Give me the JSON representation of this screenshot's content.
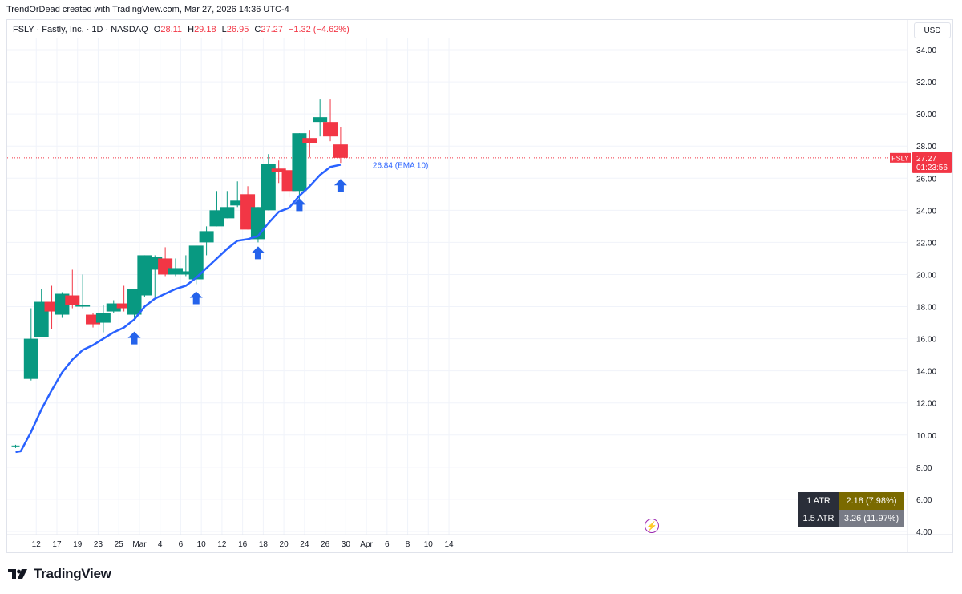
{
  "header": {
    "credit": "TrendOrDead created with TradingView.com, Mar 27, 2026 14:36 UTC-4",
    "symbol": "FSLY · Fastly, Inc. · 1D · NASDAQ",
    "open_label": "O",
    "open": "28.11",
    "high_label": "H",
    "high": "29.18",
    "low_label": "L",
    "low": "26.95",
    "close_label": "C",
    "close": "27.27",
    "change": "−1.32 (−4.62%)"
  },
  "currency": "USD",
  "brand": "TradingView",
  "colors": {
    "up": "#089981",
    "down": "#f23645",
    "ema": "#2962ff",
    "arrow": "#2563eb",
    "grid": "#f0f3fa",
    "axis_text": "#131722"
  },
  "atr_table": [
    {
      "label": "1 ATR",
      "value": "2.18 (7.98%)",
      "color": "#7a6a00"
    },
    {
      "label": "1.5 ATR",
      "value": "3.26 (11.97%)",
      "color": "#787b86"
    }
  ],
  "chart_data": {
    "type": "candlestick",
    "title": "FSLY · Fastly, Inc. · 1D · NASDAQ",
    "ylim": [
      4,
      35
    ],
    "y_ticks": [
      "4.00",
      "6.00",
      "8.00",
      "10.00",
      "12.00",
      "14.00",
      "16.00",
      "18.00",
      "20.00",
      "22.00",
      "24.00",
      "26.00",
      "28.00",
      "30.00",
      "32.00",
      "34.00"
    ],
    "x_ticks": [
      "12",
      "17",
      "19",
      "23",
      "25",
      "Mar",
      "4",
      "6",
      "10",
      "12",
      "16",
      "18",
      "20",
      "24",
      "26",
      "30",
      "Apr",
      "6",
      "8",
      "10",
      "14"
    ],
    "x_tick_slots": [
      2,
      4,
      6,
      8,
      10,
      12,
      14,
      16,
      18,
      20,
      22,
      24,
      26,
      28,
      30,
      32,
      34,
      36,
      38,
      40,
      42
    ],
    "candles": [
      {
        "slot": 0,
        "o": 9.3,
        "h": 9.4,
        "l": 9.2,
        "c": 9.35
      },
      {
        "slot": 1.5,
        "o": 13.5,
        "h": 17.9,
        "l": 13.4,
        "c": 16.0
      },
      {
        "slot": 2.5,
        "o": 16.1,
        "h": 19.1,
        "l": 16.1,
        "c": 18.3
      },
      {
        "slot": 3.5,
        "o": 18.3,
        "h": 19.3,
        "l": 16.6,
        "c": 17.7
      },
      {
        "slot": 4.5,
        "o": 17.5,
        "h": 18.9,
        "l": 17.3,
        "c": 18.8
      },
      {
        "slot": 5.5,
        "o": 18.7,
        "h": 20.3,
        "l": 17.9,
        "c": 18.1
      },
      {
        "slot": 6.5,
        "o": 18.0,
        "h": 20.0,
        "l": 17.9,
        "c": 18.1
      },
      {
        "slot": 7.5,
        "o": 17.5,
        "h": 17.6,
        "l": 16.7,
        "c": 16.9
      },
      {
        "slot": 8.5,
        "o": 17.0,
        "h": 18.1,
        "l": 16.4,
        "c": 17.6
      },
      {
        "slot": 9.5,
        "o": 17.7,
        "h": 18.4,
        "l": 17.6,
        "c": 18.2
      },
      {
        "slot": 10.5,
        "o": 18.2,
        "h": 19.3,
        "l": 17.7,
        "c": 17.9
      },
      {
        "slot": 11.5,
        "o": 17.5,
        "h": 19.1,
        "l": 17.3,
        "c": 19.1
      },
      {
        "slot": 12.5,
        "o": 18.7,
        "h": 21.2,
        "l": 18.6,
        "c": 21.2
      },
      {
        "slot": 13.5,
        "o": 20.3,
        "h": 21.2,
        "l": 18.6,
        "c": 21.1
      },
      {
        "slot": 14.5,
        "o": 21.0,
        "h": 21.7,
        "l": 19.9,
        "c": 20.0
      },
      {
        "slot": 15.5,
        "o": 20.0,
        "h": 21.0,
        "l": 19.9,
        "c": 20.4
      },
      {
        "slot": 16.5,
        "o": 20.0,
        "h": 21.2,
        "l": 19.9,
        "c": 20.2
      },
      {
        "slot": 17.5,
        "o": 19.7,
        "h": 21.8,
        "l": 19.4,
        "c": 21.8
      },
      {
        "slot": 18.5,
        "o": 22.0,
        "h": 23.0,
        "l": 21.2,
        "c": 22.7
      },
      {
        "slot": 19.5,
        "o": 23.0,
        "h": 25.2,
        "l": 23.0,
        "c": 24.0
      },
      {
        "slot": 20.5,
        "o": 23.5,
        "h": 25.2,
        "l": 23.5,
        "c": 24.2
      },
      {
        "slot": 21.5,
        "o": 24.3,
        "h": 25.8,
        "l": 24.2,
        "c": 24.6
      },
      {
        "slot": 22.5,
        "o": 25.0,
        "h": 25.5,
        "l": 22.8,
        "c": 22.8
      },
      {
        "slot": 23.5,
        "o": 22.2,
        "h": 24.2,
        "l": 22.0,
        "c": 24.2
      },
      {
        "slot": 24.5,
        "o": 24.0,
        "h": 27.5,
        "l": 24.0,
        "c": 26.9
      },
      {
        "slot": 25.5,
        "o": 26.6,
        "h": 27.1,
        "l": 25.7,
        "c": 26.4
      },
      {
        "slot": 26.5,
        "o": 26.5,
        "h": 26.5,
        "l": 24.8,
        "c": 25.2
      },
      {
        "slot": 27.5,
        "o": 25.2,
        "h": 28.8,
        "l": 24.7,
        "c": 28.8
      },
      {
        "slot": 28.5,
        "o": 28.5,
        "h": 29.0,
        "l": 27.3,
        "c": 28.2
      },
      {
        "slot": 29.5,
        "o": 29.5,
        "h": 30.9,
        "l": 28.6,
        "c": 29.8
      },
      {
        "slot": 30.5,
        "o": 29.5,
        "h": 30.9,
        "l": 28.3,
        "c": 28.6
      },
      {
        "slot": 31.5,
        "o": 28.1,
        "h": 29.2,
        "l": 26.95,
        "c": 27.27
      }
    ],
    "ema": {
      "name": "EMA 10",
      "label": "26.84 (EMA 10)",
      "last": 26.84,
      "points": [
        {
          "slot": 0,
          "v": 8.95
        },
        {
          "slot": 0.5,
          "v": 9.0
        },
        {
          "slot": 1.5,
          "v": 10.2
        },
        {
          "slot": 2.5,
          "v": 11.6
        },
        {
          "slot": 3.5,
          "v": 12.8
        },
        {
          "slot": 4.5,
          "v": 13.9
        },
        {
          "slot": 5.5,
          "v": 14.7
        },
        {
          "slot": 6.5,
          "v": 15.3
        },
        {
          "slot": 7.5,
          "v": 15.6
        },
        {
          "slot": 8.5,
          "v": 16.0
        },
        {
          "slot": 9.5,
          "v": 16.4
        },
        {
          "slot": 10.5,
          "v": 16.7
        },
        {
          "slot": 11.5,
          "v": 17.2
        },
        {
          "slot": 12.5,
          "v": 18.0
        },
        {
          "slot": 13.5,
          "v": 18.5
        },
        {
          "slot": 14.5,
          "v": 18.8
        },
        {
          "slot": 15.5,
          "v": 19.1
        },
        {
          "slot": 16.5,
          "v": 19.3
        },
        {
          "slot": 17.5,
          "v": 19.8
        },
        {
          "slot": 18.5,
          "v": 20.4
        },
        {
          "slot": 19.5,
          "v": 21.0
        },
        {
          "slot": 20.5,
          "v": 21.6
        },
        {
          "slot": 21.5,
          "v": 22.1
        },
        {
          "slot": 22.5,
          "v": 22.2
        },
        {
          "slot": 23.5,
          "v": 22.4
        },
        {
          "slot": 24.5,
          "v": 23.2
        },
        {
          "slot": 25.5,
          "v": 23.9
        },
        {
          "slot": 26.5,
          "v": 24.15
        },
        {
          "slot": 27.5,
          "v": 24.9
        },
        {
          "slot": 28.5,
          "v": 25.5
        },
        {
          "slot": 29.5,
          "v": 26.2
        },
        {
          "slot": 30.5,
          "v": 26.7
        },
        {
          "slot": 31.5,
          "v": 26.84
        }
      ]
    },
    "signal_arrows": [
      {
        "slot": 11.5,
        "v": 16.0
      },
      {
        "slot": 17.5,
        "v": 18.5
      },
      {
        "slot": 23.5,
        "v": 21.3
      },
      {
        "slot": 27.5,
        "v": 24.3
      },
      {
        "slot": 31.5,
        "v": 25.5
      }
    ],
    "price_badge": {
      "ticker": "FSLY",
      "price": "27.27",
      "countdown": "01:23:56",
      "value": 27.27
    }
  }
}
